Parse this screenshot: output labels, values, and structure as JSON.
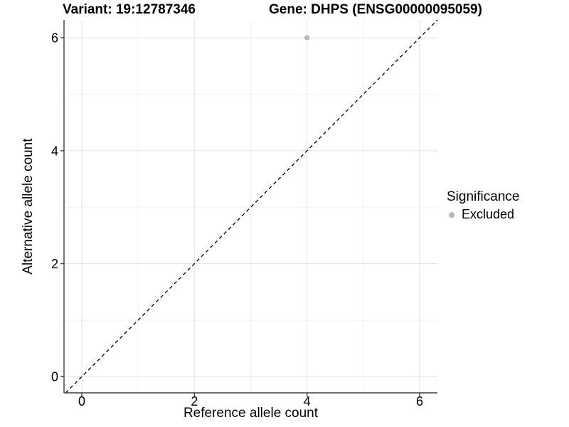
{
  "chart_data": {
    "type": "scatter",
    "title_left": "Variant: 19:12787346",
    "title_right": "Gene: DHPS (ENSG00000095059)",
    "xlabel": "Reference allele count",
    "ylabel": "Alternative allele count",
    "xlim": [
      -0.316,
      6.316
    ],
    "ylim": [
      -0.287,
      6.316
    ],
    "x_ticks": [
      0,
      2,
      4,
      6
    ],
    "y_ticks": [
      0,
      2,
      4,
      6
    ],
    "x_minor_gridlines": [
      1,
      3,
      5
    ],
    "y_minor_gridlines": [
      1,
      3,
      5
    ],
    "grid": "on",
    "identity_line": {
      "type": "dashed",
      "equation": "y = x",
      "color": "#000000"
    },
    "series": [
      {
        "name": "Excluded",
        "color": "#b8b8b8",
        "points": [
          {
            "x": 4,
            "y": 6
          }
        ]
      }
    ],
    "legend": {
      "title": "Significance",
      "position": "right",
      "items": [
        {
          "label": "Excluded",
          "color": "#b8b8b8",
          "marker": "circle"
        }
      ]
    },
    "colors": {
      "axis": "#3c3c3c",
      "grid_major": "#e3e3e3",
      "grid_minor": "#efefef",
      "tick_text": "#000000"
    }
  }
}
